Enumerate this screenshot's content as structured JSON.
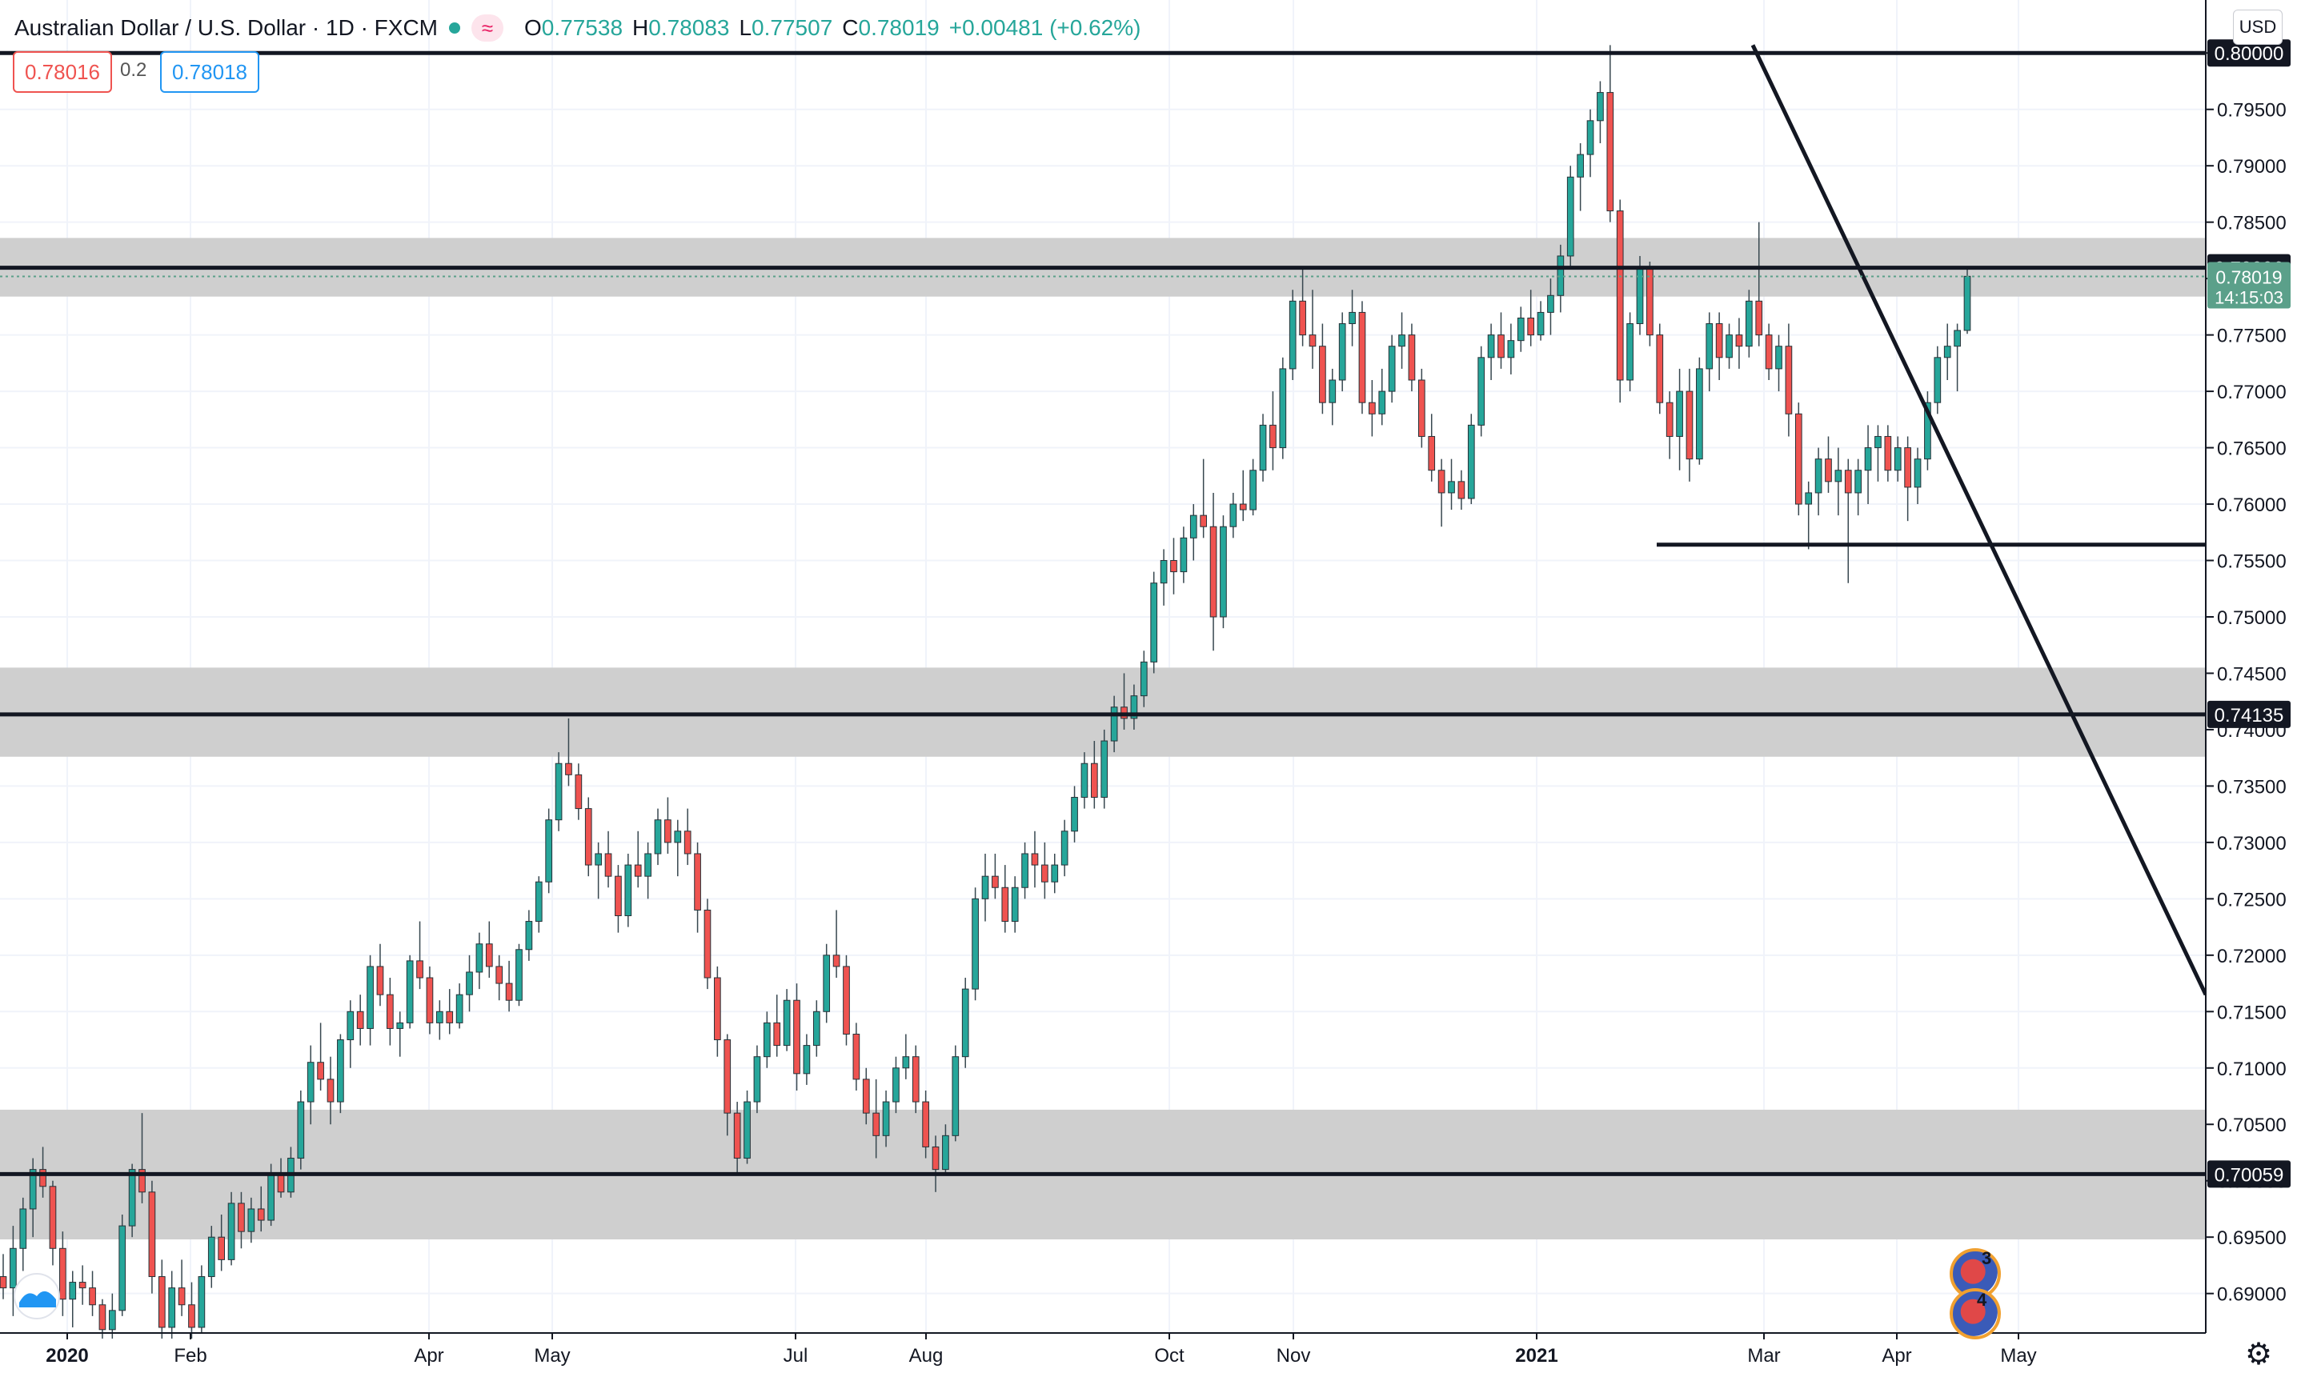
{
  "header": {
    "title": "Australian Dollar / U.S. Dollar · 1D · FXCM",
    "ohlc": [
      {
        "label": "O",
        "value": "0.77538"
      },
      {
        "label": "H",
        "value": "0.78083"
      },
      {
        "label": "L",
        "value": "0.77507"
      },
      {
        "label": "C",
        "value": "0.78019"
      }
    ],
    "change": "+0.00481 (+0.62%)"
  },
  "trade": {
    "bid": "0.78016",
    "spread": "0.2",
    "ask": "0.78018"
  },
  "currency_label": "USD",
  "events": {
    "upper_count": "3",
    "lower_count": "4"
  },
  "colors": {
    "up": "#26a69a",
    "down": "#ef5350",
    "zone": "#cccccc",
    "last_price": "#5ba08a"
  },
  "chart_data": {
    "type": "candlestick",
    "title": "Australian Dollar / U.S. Dollar · 1D · FXCM",
    "y_axis": {
      "range": [
        0.6865,
        0.8047
      ],
      "ticks": [
        "0.69000",
        "0.69500",
        "0.70000",
        "0.70500",
        "0.71000",
        "0.71500",
        "0.72000",
        "0.72500",
        "0.73000",
        "0.73500",
        "0.74000",
        "0.74500",
        "0.75000",
        "0.75500",
        "0.76000",
        "0.76500",
        "0.77000",
        "0.77500",
        "0.78000",
        "0.78500",
        "0.79000",
        "0.79500",
        "0.80000"
      ]
    },
    "x_axis": {
      "ticks": [
        "2020",
        "Feb",
        "Apr",
        "May",
        "Jul",
        "Aug",
        "Oct",
        "Nov",
        "2021",
        "Mar",
        "Apr",
        "May"
      ]
    },
    "grid": true,
    "horizontal_levels": [
      {
        "price": 0.8,
        "label": "0.80000",
        "zone": false
      },
      {
        "price": 0.78096,
        "label": "0.78096",
        "zone": [
          0.7784,
          0.7836
        ]
      },
      {
        "price": 0.74135,
        "label": "0.74135",
        "zone": [
          0.7376,
          0.7455
        ]
      },
      {
        "price": 0.70059,
        "label": "0.70059",
        "zone": [
          0.6948,
          0.7063
        ]
      }
    ],
    "support_line": {
      "price": 0.7564,
      "from": "2021-01-mid",
      "to": "right edge"
    },
    "trend_line": {
      "from": {
        "date": "2021-02-26",
        "price": 0.8007
      },
      "to": {
        "date": "2021-06 (projected)",
        "price": 0.7165
      }
    },
    "last_price": {
      "value": "0.78019",
      "countdown": "14:15:03"
    },
    "candles": [
      [
        0.6915,
        0.6935,
        0.6895,
        0.6905
      ],
      [
        0.6905,
        0.696,
        0.688,
        0.694
      ],
      [
        0.694,
        0.6985,
        0.692,
        0.6975
      ],
      [
        0.6975,
        0.702,
        0.695,
        0.701
      ],
      [
        0.701,
        0.703,
        0.6985,
        0.6995
      ],
      [
        0.6995,
        0.7,
        0.6925,
        0.694
      ],
      [
        0.694,
        0.6955,
        0.688,
        0.6895
      ],
      [
        0.6895,
        0.692,
        0.687,
        0.691
      ],
      [
        0.691,
        0.6925,
        0.689,
        0.6905
      ],
      [
        0.6905,
        0.692,
        0.688,
        0.689
      ],
      [
        0.689,
        0.6895,
        0.686,
        0.6868
      ],
      [
        0.6868,
        0.69,
        0.686,
        0.6885
      ],
      [
        0.6885,
        0.697,
        0.688,
        0.696
      ],
      [
        0.696,
        0.7015,
        0.695,
        0.701
      ],
      [
        0.701,
        0.706,
        0.698,
        0.699
      ],
      [
        0.699,
        0.7,
        0.69,
        0.6915
      ],
      [
        0.6915,
        0.693,
        0.686,
        0.687
      ],
      [
        0.687,
        0.692,
        0.686,
        0.6905
      ],
      [
        0.6905,
        0.693,
        0.688,
        0.689
      ],
      [
        0.689,
        0.691,
        0.686,
        0.687
      ],
      [
        0.687,
        0.6925,
        0.6865,
        0.6915
      ],
      [
        0.6915,
        0.696,
        0.6905,
        0.695
      ],
      [
        0.695,
        0.697,
        0.692,
        0.693
      ],
      [
        0.693,
        0.699,
        0.6925,
        0.698
      ],
      [
        0.698,
        0.699,
        0.694,
        0.6955
      ],
      [
        0.6955,
        0.6985,
        0.6945,
        0.6975
      ],
      [
        0.6975,
        0.6995,
        0.6955,
        0.6965
      ],
      [
        0.6965,
        0.7015,
        0.696,
        0.7005
      ],
      [
        0.7005,
        0.702,
        0.6985,
        0.699
      ],
      [
        0.699,
        0.703,
        0.6985,
        0.702
      ],
      [
        0.702,
        0.708,
        0.701,
        0.707
      ],
      [
        0.707,
        0.712,
        0.705,
        0.7105
      ],
      [
        0.7105,
        0.714,
        0.708,
        0.709
      ],
      [
        0.709,
        0.711,
        0.705,
        0.707
      ],
      [
        0.707,
        0.713,
        0.706,
        0.7125
      ],
      [
        0.7125,
        0.716,
        0.71,
        0.715
      ],
      [
        0.715,
        0.7165,
        0.712,
        0.7135
      ],
      [
        0.7135,
        0.72,
        0.712,
        0.719
      ],
      [
        0.719,
        0.721,
        0.7155,
        0.7165
      ],
      [
        0.7165,
        0.718,
        0.712,
        0.7135
      ],
      [
        0.7135,
        0.715,
        0.711,
        0.714
      ],
      [
        0.714,
        0.72,
        0.7135,
        0.7195
      ],
      [
        0.7195,
        0.723,
        0.717,
        0.718
      ],
      [
        0.718,
        0.719,
        0.713,
        0.714
      ],
      [
        0.714,
        0.716,
        0.7125,
        0.715
      ],
      [
        0.715,
        0.717,
        0.713,
        0.714
      ],
      [
        0.714,
        0.7175,
        0.7135,
        0.7165
      ],
      [
        0.7165,
        0.72,
        0.715,
        0.7185
      ],
      [
        0.7185,
        0.722,
        0.717,
        0.721
      ],
      [
        0.721,
        0.723,
        0.718,
        0.719
      ],
      [
        0.719,
        0.72,
        0.716,
        0.7175
      ],
      [
        0.7175,
        0.7195,
        0.715,
        0.716
      ],
      [
        0.716,
        0.721,
        0.7155,
        0.7205
      ],
      [
        0.7205,
        0.724,
        0.7195,
        0.723
      ],
      [
        0.723,
        0.727,
        0.722,
        0.7265
      ],
      [
        0.7265,
        0.733,
        0.7255,
        0.732
      ],
      [
        0.732,
        0.738,
        0.731,
        0.737
      ],
      [
        0.737,
        0.741,
        0.735,
        0.736
      ],
      [
        0.736,
        0.737,
        0.732,
        0.733
      ],
      [
        0.733,
        0.734,
        0.727,
        0.728
      ],
      [
        0.728,
        0.73,
        0.725,
        0.729
      ],
      [
        0.729,
        0.731,
        0.726,
        0.727
      ],
      [
        0.727,
        0.728,
        0.722,
        0.7235
      ],
      [
        0.7235,
        0.729,
        0.7225,
        0.728
      ],
      [
        0.728,
        0.731,
        0.726,
        0.727
      ],
      [
        0.727,
        0.73,
        0.725,
        0.729
      ],
      [
        0.729,
        0.733,
        0.728,
        0.732
      ],
      [
        0.732,
        0.734,
        0.729,
        0.73
      ],
      [
        0.73,
        0.732,
        0.727,
        0.731
      ],
      [
        0.731,
        0.733,
        0.728,
        0.729
      ],
      [
        0.729,
        0.73,
        0.722,
        0.724
      ],
      [
        0.724,
        0.725,
        0.717,
        0.718
      ],
      [
        0.718,
        0.719,
        0.711,
        0.7125
      ],
      [
        0.7125,
        0.713,
        0.704,
        0.706
      ],
      [
        0.706,
        0.707,
        0.7005,
        0.702
      ],
      [
        0.702,
        0.708,
        0.7015,
        0.707
      ],
      [
        0.707,
        0.712,
        0.706,
        0.711
      ],
      [
        0.711,
        0.715,
        0.71,
        0.714
      ],
      [
        0.714,
        0.7165,
        0.711,
        0.712
      ],
      [
        0.712,
        0.717,
        0.7115,
        0.716
      ],
      [
        0.716,
        0.7175,
        0.708,
        0.7095
      ],
      [
        0.7095,
        0.713,
        0.7085,
        0.712
      ],
      [
        0.712,
        0.716,
        0.711,
        0.715
      ],
      [
        0.715,
        0.721,
        0.714,
        0.72
      ],
      [
        0.72,
        0.724,
        0.718,
        0.719
      ],
      [
        0.719,
        0.72,
        0.712,
        0.713
      ],
      [
        0.713,
        0.714,
        0.708,
        0.709
      ],
      [
        0.709,
        0.71,
        0.705,
        0.706
      ],
      [
        0.706,
        0.709,
        0.702,
        0.704
      ],
      [
        0.704,
        0.708,
        0.703,
        0.707
      ],
      [
        0.707,
        0.711,
        0.706,
        0.71
      ],
      [
        0.71,
        0.713,
        0.709,
        0.711
      ],
      [
        0.711,
        0.712,
        0.706,
        0.707
      ],
      [
        0.707,
        0.708,
        0.702,
        0.703
      ],
      [
        0.703,
        0.704,
        0.699,
        0.701
      ],
      [
        0.701,
        0.705,
        0.7005,
        0.704
      ],
      [
        0.704,
        0.712,
        0.7035,
        0.711
      ],
      [
        0.711,
        0.718,
        0.71,
        0.717
      ],
      [
        0.717,
        0.726,
        0.716,
        0.725
      ],
      [
        0.725,
        0.729,
        0.723,
        0.727
      ],
      [
        0.727,
        0.729,
        0.725,
        0.726
      ],
      [
        0.726,
        0.728,
        0.722,
        0.723
      ],
      [
        0.723,
        0.727,
        0.722,
        0.726
      ],
      [
        0.726,
        0.73,
        0.725,
        0.729
      ],
      [
        0.729,
        0.731,
        0.726,
        0.728
      ],
      [
        0.728,
        0.73,
        0.725,
        0.7265
      ],
      [
        0.7265,
        0.729,
        0.7255,
        0.728
      ],
      [
        0.728,
        0.732,
        0.727,
        0.731
      ],
      [
        0.731,
        0.735,
        0.73,
        0.734
      ],
      [
        0.734,
        0.738,
        0.733,
        0.737
      ],
      [
        0.737,
        0.739,
        0.733,
        0.734
      ],
      [
        0.734,
        0.74,
        0.733,
        0.739
      ],
      [
        0.739,
        0.743,
        0.738,
        0.742
      ],
      [
        0.742,
        0.745,
        0.74,
        0.741
      ],
      [
        0.741,
        0.744,
        0.74,
        0.743
      ],
      [
        0.743,
        0.747,
        0.742,
        0.746
      ],
      [
        0.746,
        0.754,
        0.745,
        0.753
      ],
      [
        0.753,
        0.756,
        0.751,
        0.755
      ],
      [
        0.755,
        0.757,
        0.752,
        0.754
      ],
      [
        0.754,
        0.758,
        0.753,
        0.757
      ],
      [
        0.757,
        0.76,
        0.755,
        0.759
      ],
      [
        0.759,
        0.764,
        0.757,
        0.758
      ],
      [
        0.758,
        0.761,
        0.747,
        0.75
      ],
      [
        0.75,
        0.759,
        0.749,
        0.758
      ],
      [
        0.758,
        0.761,
        0.757,
        0.76
      ],
      [
        0.76,
        0.763,
        0.7585,
        0.7595
      ],
      [
        0.7595,
        0.764,
        0.759,
        0.763
      ],
      [
        0.763,
        0.768,
        0.762,
        0.767
      ],
      [
        0.767,
        0.77,
        0.763,
        0.765
      ],
      [
        0.765,
        0.773,
        0.764,
        0.772
      ],
      [
        0.772,
        0.779,
        0.771,
        0.778
      ],
      [
        0.778,
        0.781,
        0.774,
        0.775
      ],
      [
        0.775,
        0.779,
        0.772,
        0.774
      ],
      [
        0.774,
        0.776,
        0.768,
        0.769
      ],
      [
        0.769,
        0.772,
        0.767,
        0.771
      ],
      [
        0.771,
        0.777,
        0.77,
        0.776
      ],
      [
        0.776,
        0.779,
        0.774,
        0.777
      ],
      [
        0.777,
        0.778,
        0.768,
        0.769
      ],
      [
        0.769,
        0.771,
        0.766,
        0.768
      ],
      [
        0.768,
        0.772,
        0.767,
        0.77
      ],
      [
        0.77,
        0.775,
        0.769,
        0.774
      ],
      [
        0.774,
        0.777,
        0.772,
        0.775
      ],
      [
        0.775,
        0.776,
        0.77,
        0.771
      ],
      [
        0.771,
        0.772,
        0.765,
        0.766
      ],
      [
        0.766,
        0.768,
        0.762,
        0.763
      ],
      [
        0.763,
        0.764,
        0.758,
        0.761
      ],
      [
        0.761,
        0.764,
        0.7595,
        0.762
      ],
      [
        0.762,
        0.763,
        0.7595,
        0.7605
      ],
      [
        0.7605,
        0.768,
        0.76,
        0.767
      ],
      [
        0.767,
        0.774,
        0.766,
        0.773
      ],
      [
        0.773,
        0.776,
        0.771,
        0.775
      ],
      [
        0.775,
        0.777,
        0.772,
        0.773
      ],
      [
        0.773,
        0.776,
        0.7715,
        0.7745
      ],
      [
        0.7745,
        0.7775,
        0.7735,
        0.7765
      ],
      [
        0.7765,
        0.779,
        0.774,
        0.775
      ],
      [
        0.775,
        0.778,
        0.7745,
        0.777
      ],
      [
        0.777,
        0.78,
        0.775,
        0.7785
      ],
      [
        0.7785,
        0.783,
        0.777,
        0.782
      ],
      [
        0.782,
        0.79,
        0.781,
        0.789
      ],
      [
        0.789,
        0.792,
        0.786,
        0.791
      ],
      [
        0.791,
        0.795,
        0.789,
        0.794
      ],
      [
        0.794,
        0.7975,
        0.792,
        0.7965
      ],
      [
        0.7965,
        0.8007,
        0.785,
        0.786
      ],
      [
        0.786,
        0.787,
        0.769,
        0.771
      ],
      [
        0.771,
        0.777,
        0.77,
        0.776
      ],
      [
        0.776,
        0.782,
        0.775,
        0.781
      ],
      [
        0.781,
        0.7815,
        0.774,
        0.775
      ],
      [
        0.775,
        0.776,
        0.768,
        0.769
      ],
      [
        0.769,
        0.77,
        0.764,
        0.766
      ],
      [
        0.766,
        0.772,
        0.763,
        0.77
      ],
      [
        0.77,
        0.772,
        0.762,
        0.764
      ],
      [
        0.764,
        0.773,
        0.7635,
        0.772
      ],
      [
        0.772,
        0.777,
        0.77,
        0.776
      ],
      [
        0.776,
        0.777,
        0.771,
        0.773
      ],
      [
        0.773,
        0.776,
        0.772,
        0.775
      ],
      [
        0.775,
        0.7765,
        0.772,
        0.774
      ],
      [
        0.774,
        0.779,
        0.773,
        0.778
      ],
      [
        0.778,
        0.785,
        0.774,
        0.775
      ],
      [
        0.775,
        0.776,
        0.771,
        0.772
      ],
      [
        0.772,
        0.775,
        0.77,
        0.774
      ],
      [
        0.774,
        0.776,
        0.766,
        0.768
      ],
      [
        0.768,
        0.769,
        0.759,
        0.76
      ],
      [
        0.76,
        0.762,
        0.756,
        0.761
      ],
      [
        0.761,
        0.765,
        0.759,
        0.764
      ],
      [
        0.764,
        0.766,
        0.761,
        0.762
      ],
      [
        0.762,
        0.765,
        0.759,
        0.763
      ],
      [
        0.763,
        0.764,
        0.753,
        0.761
      ],
      [
        0.761,
        0.764,
        0.759,
        0.763
      ],
      [
        0.763,
        0.767,
        0.76,
        0.765
      ],
      [
        0.765,
        0.767,
        0.762,
        0.766
      ],
      [
        0.766,
        0.767,
        0.762,
        0.763
      ],
      [
        0.763,
        0.766,
        0.762,
        0.765
      ],
      [
        0.765,
        0.766,
        0.7585,
        0.7615
      ],
      [
        0.7615,
        0.765,
        0.76,
        0.764
      ],
      [
        0.764,
        0.77,
        0.763,
        0.769
      ],
      [
        0.769,
        0.774,
        0.768,
        0.773
      ],
      [
        0.773,
        0.776,
        0.771,
        0.774
      ],
      [
        0.774,
        0.776,
        0.77,
        0.7754
      ],
      [
        0.7754,
        0.7808,
        0.7751,
        0.7802
      ]
    ]
  }
}
